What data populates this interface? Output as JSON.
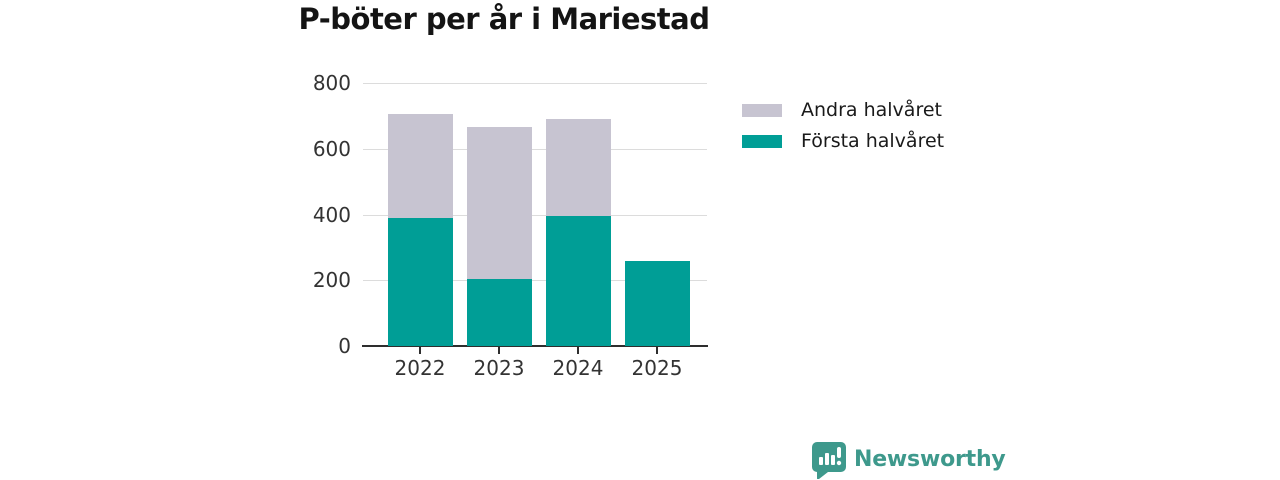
{
  "chart_data": {
    "type": "bar",
    "stacked": true,
    "title": "P-böter per år i Mariestad",
    "categories": [
      "2022",
      "2023",
      "2024",
      "2025"
    ],
    "series": [
      {
        "name": "Första halvåret",
        "color": "#009e96",
        "values": [
          390,
          205,
          395,
          260
        ]
      },
      {
        "name": "Andra halvåret",
        "color": "#c7c4d1",
        "values": [
          315,
          460,
          295,
          0
        ]
      }
    ],
    "xlabel": "",
    "ylabel": "",
    "ylim": [
      0,
      800
    ],
    "yticks": [
      0,
      200,
      400,
      600,
      800
    ],
    "grid": true,
    "legend": {
      "position": "right",
      "entries": [
        {
          "label": "Andra halvåret",
          "color": "#c7c4d1"
        },
        {
          "label": "Första halvåret",
          "color": "#009e96"
        }
      ]
    }
  },
  "footer": {
    "brand": "Newsworthy"
  },
  "colors": {
    "bar_first_half": "#009e96",
    "bar_second_half": "#c7c4d1",
    "grid": "#dcdcdc",
    "axis": "#2e2e2e",
    "tick_text": "#333333",
    "title_text": "#141414",
    "brand": "#3e998c",
    "background": "#ffffff"
  }
}
